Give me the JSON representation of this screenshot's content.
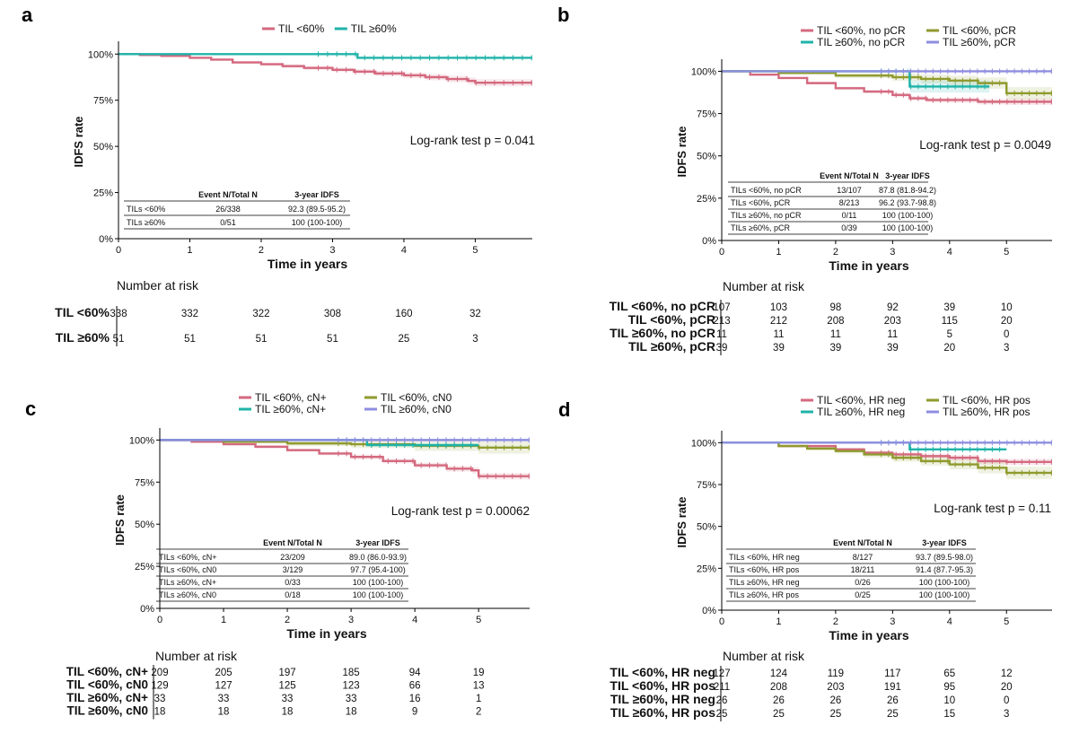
{
  "chart_data": [
    {
      "panel": "a",
      "type": "line",
      "subtype": "kaplan-meier",
      "ylabel": "IDFS rate",
      "xlabel": "Time in years",
      "yticks": [
        "0%",
        "25%",
        "50%",
        "75%",
        "100%"
      ],
      "xticks": [
        "0",
        "1",
        "2",
        "3",
        "4",
        "5"
      ],
      "xlim": [
        0,
        5.8
      ],
      "ylim": [
        0,
        1.05
      ],
      "logrank": "Log-rank test  p = 0.041",
      "series": [
        {
          "name": "TIL <60%",
          "color": "#d4697f",
          "ci": true,
          "x": [
            0,
            0.3,
            0.6,
            1.0,
            1.3,
            1.6,
            2.0,
            2.3,
            2.6,
            3.0,
            3.3,
            3.6,
            4.0,
            4.3,
            4.6,
            4.9,
            5.0,
            5.8
          ],
          "y": [
            1.0,
            0.995,
            0.99,
            0.98,
            0.97,
            0.955,
            0.945,
            0.935,
            0.925,
            0.915,
            0.905,
            0.895,
            0.885,
            0.875,
            0.865,
            0.855,
            0.845,
            0.845
          ]
        },
        {
          "name": "TIL ≥60%",
          "color": "#1fb3a9",
          "ci": false,
          "x": [
            0,
            3.3,
            3.35,
            5.8
          ],
          "y": [
            1.0,
            1.0,
            0.98,
            0.98
          ]
        }
      ],
      "table": {
        "headers": [
          "",
          "Event N/Total N",
          "3-year IDFS"
        ],
        "rows": [
          [
            "TILs <60%",
            "26/338",
            "92.3 (89.5-95.2)"
          ],
          [
            "TILs ≥60%",
            "0/51",
            "100 (100-100)"
          ]
        ]
      },
      "risk": {
        "title": "Number at risk",
        "rows": [
          {
            "label": "TIL <60%",
            "color": "#d4697f",
            "values": [
              "338",
              "332",
              "322",
              "308",
              "160",
              "32"
            ]
          },
          {
            "label": "TIL ≥60%",
            "color": "#1fb3a9",
            "values": [
              "51",
              "51",
              "51",
              "51",
              "25",
              "3"
            ]
          }
        ]
      }
    },
    {
      "panel": "b",
      "type": "line",
      "subtype": "kaplan-meier",
      "ylabel": "IDFS rate",
      "xlabel": "Time in years",
      "yticks": [
        "0%",
        "25%",
        "50%",
        "75%",
        "100%"
      ],
      "xticks": [
        "0",
        "1",
        "2",
        "3",
        "4",
        "5"
      ],
      "xlim": [
        0,
        5.8
      ],
      "ylim": [
        0,
        1.05
      ],
      "logrank": "Log-rank test  p = 0.0049",
      "series": [
        {
          "name": "TIL <60%, no pCR",
          "color": "#d4697f",
          "ci": true,
          "x": [
            0,
            0.5,
            1.0,
            1.5,
            2.0,
            2.5,
            3.0,
            3.3,
            3.6,
            4.0,
            4.5,
            5.0,
            5.8
          ],
          "y": [
            1.0,
            0.98,
            0.96,
            0.93,
            0.9,
            0.88,
            0.86,
            0.84,
            0.83,
            0.83,
            0.82,
            0.82,
            0.82
          ]
        },
        {
          "name": "TIL <60%, pCR",
          "color": "#8f9a2e",
          "ci": true,
          "x": [
            0,
            1.0,
            2.0,
            3.0,
            3.5,
            4.0,
            4.5,
            5.0,
            5.8
          ],
          "y": [
            1.0,
            0.99,
            0.975,
            0.965,
            0.955,
            0.945,
            0.93,
            0.87,
            0.87
          ]
        },
        {
          "name": "TIL ≥60%, no pCR",
          "color": "#1fb3a9",
          "ci": true,
          "x": [
            0,
            3.25,
            3.3,
            4.7
          ],
          "y": [
            1.0,
            1.0,
            0.91,
            0.91
          ]
        },
        {
          "name": "TIL ≥60%, pCR",
          "color": "#8e8ee0",
          "ci": false,
          "x": [
            0,
            5.8
          ],
          "y": [
            1.0,
            1.0
          ]
        }
      ],
      "table": {
        "headers": [
          "",
          "Event N/Total N",
          "3-year IDFS"
        ],
        "rows": [
          [
            "TILs <60%, no pCR",
            "13/107",
            "87.8 (81.8-94.2)"
          ],
          [
            "TILs <60%,  pCR",
            "8/213",
            "96.2 (93.7-98.8)"
          ],
          [
            "TILs ≥60%, no pCR",
            "0/11",
            "100 (100-100)"
          ],
          [
            "TILs ≥60%,  pCR",
            "0/39",
            "100 (100-100)"
          ]
        ]
      },
      "risk": {
        "title": "Number at risk",
        "rows": [
          {
            "label": "TIL <60%, no pCR",
            "color": "#d4697f",
            "values": [
              "107",
              "103",
              "98",
              "92",
              "39",
              "10"
            ]
          },
          {
            "label": "TIL <60%, pCR",
            "color": "#8f9a2e",
            "values": [
              "213",
              "212",
              "208",
              "203",
              "115",
              "20"
            ]
          },
          {
            "label": "TIL ≥60%, no pCR",
            "color": "#1fb3a9",
            "values": [
              "11",
              "11",
              "11",
              "11",
              "5",
              "0"
            ]
          },
          {
            "label": "TIL ≥60%, pCR",
            "color": "#8e8ee0",
            "values": [
              "39",
              "39",
              "39",
              "39",
              "20",
              "3"
            ]
          }
        ]
      }
    },
    {
      "panel": "c",
      "type": "line",
      "subtype": "kaplan-meier",
      "ylabel": "IDFS rate",
      "xlabel": "Time in years",
      "yticks": [
        "0%",
        "25%",
        "50%",
        "75%",
        "100%"
      ],
      "xticks": [
        "0",
        "1",
        "2",
        "3",
        "4",
        "5"
      ],
      "xlim": [
        0,
        5.8
      ],
      "ylim": [
        0,
        1.05
      ],
      "logrank": "Log-rank test  p = 0.00062",
      "series": [
        {
          "name": "TIL <60%, cN+",
          "color": "#d4697f",
          "ci": true,
          "x": [
            0,
            0.5,
            1.0,
            1.5,
            2.0,
            2.5,
            3.0,
            3.5,
            4.0,
            4.5,
            4.9,
            5.0,
            5.8
          ],
          "y": [
            1.0,
            0.99,
            0.975,
            0.96,
            0.94,
            0.92,
            0.9,
            0.875,
            0.85,
            0.83,
            0.82,
            0.785,
            0.785
          ]
        },
        {
          "name": "TIL <60%, cN0",
          "color": "#8f9a2e",
          "ci": true,
          "x": [
            0,
            1.0,
            2.0,
            3.0,
            4.0,
            5.0,
            5.8
          ],
          "y": [
            1.0,
            0.99,
            0.98,
            0.975,
            0.965,
            0.955,
            0.955
          ]
        },
        {
          "name": "TIL ≥60%, cN+",
          "color": "#1fb3a9",
          "ci": false,
          "x": [
            0,
            3.2,
            3.25,
            5.0
          ],
          "y": [
            1.0,
            1.0,
            0.97,
            0.97
          ]
        },
        {
          "name": "TIL ≥60%, cN0",
          "color": "#8e8ee0",
          "ci": false,
          "x": [
            0,
            5.8
          ],
          "y": [
            1.0,
            1.0
          ]
        }
      ],
      "table": {
        "headers": [
          "",
          "Event N/Total N",
          "3-year IDFS"
        ],
        "rows": [
          [
            "TILs <60%, cN+",
            "23/209",
            "89.0 (86.0-93.9)"
          ],
          [
            "TILs <60%, cN0",
            "3/129",
            "97.7 (95.4-100)"
          ],
          [
            "TILs ≥60%, cN+",
            "0/33",
            "100 (100-100)"
          ],
          [
            "TILs ≥60%, cN0",
            "0/18",
            "100 (100-100)"
          ]
        ]
      },
      "risk": {
        "title": "Number at risk",
        "rows": [
          {
            "label": "TIL <60%, cN+",
            "color": "#d4697f",
            "values": [
              "209",
              "205",
              "197",
              "185",
              "94",
              "19"
            ]
          },
          {
            "label": "TIL <60%, cN0",
            "color": "#8f9a2e",
            "values": [
              "129",
              "127",
              "125",
              "123",
              "66",
              "13"
            ]
          },
          {
            "label": "TIL ≥60%, cN+",
            "color": "#1fb3a9",
            "values": [
              "33",
              "33",
              "33",
              "33",
              "16",
              "1"
            ]
          },
          {
            "label": "TIL ≥60%, cN0",
            "color": "#8e8ee0",
            "values": [
              "18",
              "18",
              "18",
              "18",
              "9",
              "2"
            ]
          }
        ]
      }
    },
    {
      "panel": "d",
      "type": "line",
      "subtype": "kaplan-meier",
      "ylabel": "IDFS rate",
      "xlabel": "Time in years",
      "yticks": [
        "0%",
        "25%",
        "50%",
        "75%",
        "100%"
      ],
      "xticks": [
        "0",
        "1",
        "2",
        "3",
        "4",
        "5"
      ],
      "xlim": [
        0,
        5.8
      ],
      "ylim": [
        0,
        1.05
      ],
      "logrank": "Log-rank test  p = 0.11",
      "series": [
        {
          "name": "TIL <60%, HR neg",
          "color": "#d4697f",
          "ci": true,
          "x": [
            0,
            1.0,
            2.0,
            2.5,
            3.0,
            3.5,
            4.0,
            4.5,
            5.0,
            5.8
          ],
          "y": [
            1.0,
            0.98,
            0.96,
            0.94,
            0.93,
            0.92,
            0.91,
            0.89,
            0.885,
            0.885
          ]
        },
        {
          "name": "TIL <60%, HR pos",
          "color": "#8f9a2e",
          "ci": true,
          "x": [
            0,
            1.0,
            1.5,
            2.0,
            2.5,
            3.0,
            3.5,
            4.0,
            4.5,
            5.0,
            5.8
          ],
          "y": [
            1.0,
            0.98,
            0.965,
            0.95,
            0.93,
            0.91,
            0.89,
            0.87,
            0.85,
            0.82,
            0.82
          ]
        },
        {
          "name": "TIL ≥60%, HR neg",
          "color": "#1fb3a9",
          "ci": false,
          "x": [
            0,
            3.25,
            3.3,
            5.0
          ],
          "y": [
            1.0,
            1.0,
            0.96,
            0.96
          ]
        },
        {
          "name": "TIL ≥60%, HR pos",
          "color": "#8e8ee0",
          "ci": false,
          "x": [
            0,
            5.8
          ],
          "y": [
            1.0,
            1.0
          ]
        }
      ],
      "table": {
        "headers": [
          "",
          "Event N/Total N",
          "3-year IDFS"
        ],
        "rows": [
          [
            "TILs <60%, HR neg",
            "8/127",
            "93.7 (89.5-98.0)"
          ],
          [
            "TILs <60%, HR pos",
            "18/211",
            "91.4 (87.7-95.3)"
          ],
          [
            "TILs ≥60%, HR neg",
            "0/26",
            "100 (100-100)"
          ],
          [
            "TILs ≥60%, HR pos",
            "0/25",
            "100 (100-100)"
          ]
        ]
      },
      "risk": {
        "title": "Number at risk",
        "rows": [
          {
            "label": "TIL <60%, HR neg",
            "color": "#d4697f",
            "values": [
              "127",
              "124",
              "119",
              "117",
              "65",
              "12"
            ]
          },
          {
            "label": "TIL <60%, HR pos",
            "color": "#8f9a2e",
            "values": [
              "211",
              "208",
              "203",
              "191",
              "95",
              "20"
            ]
          },
          {
            "label": "TIL ≥60%, HR neg",
            "color": "#1fb3a9",
            "values": [
              "26",
              "26",
              "26",
              "26",
              "10",
              "0"
            ]
          },
          {
            "label": "TIL ≥60%, HR pos",
            "color": "#8e8ee0",
            "values": [
              "25",
              "25",
              "25",
              "25",
              "15",
              "3"
            ]
          }
        ]
      }
    }
  ],
  "panel_letters": [
    "a",
    "b",
    "c",
    "d"
  ]
}
